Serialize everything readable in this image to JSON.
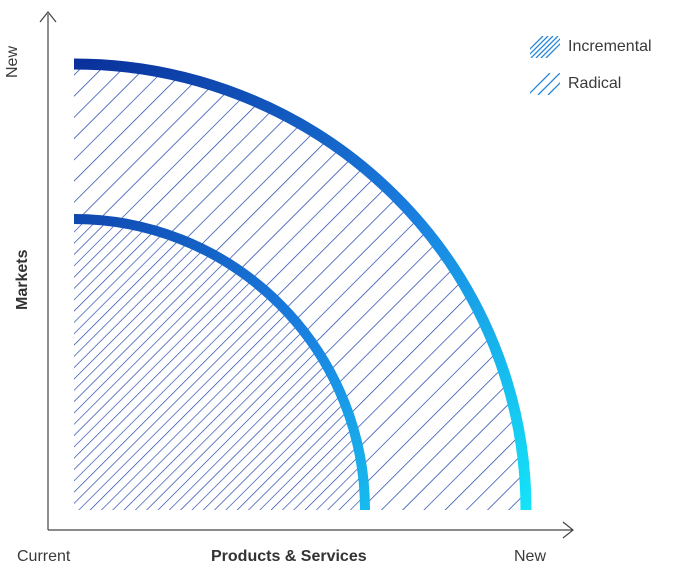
{
  "diagram": {
    "y_axis": {
      "title": "Markets",
      "top_label": "New"
    },
    "x_axis": {
      "title": "Products & Services",
      "left_label": "Current",
      "right_label": "New"
    },
    "legend": [
      {
        "label": "Incremental",
        "pattern": "hatch-dense"
      },
      {
        "label": "Radical",
        "pattern": "hatch-sparse"
      }
    ],
    "colors": {
      "arc_gradient_start": "#0a2f9a",
      "arc_gradient_end": "#14e4f8",
      "hatch_gradient_start": "#1a3fa8",
      "hatch_gradient_end": "#1ec8f0",
      "axis": "#444444"
    }
  }
}
